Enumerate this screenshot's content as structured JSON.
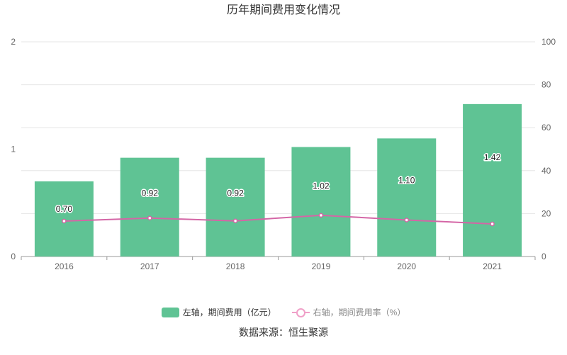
{
  "chart_data": {
    "type": "bar",
    "title": "历年期间费用变化情况",
    "categories": [
      "2016",
      "2017",
      "2018",
      "2019",
      "2020",
      "2021"
    ],
    "series": [
      {
        "name": "左轴，期间费用（亿元）",
        "type": "bar",
        "axis": "left",
        "color": "#5fc394",
        "values": [
          0.7,
          0.92,
          0.92,
          1.02,
          1.1,
          1.42
        ],
        "labels": [
          "0.70",
          "0.92",
          "0.92",
          "1.02",
          "1.10",
          "1.42"
        ]
      },
      {
        "name": "右轴，期间费用率（%）",
        "type": "line",
        "axis": "right",
        "color": "#d466a6",
        "values": [
          16.5,
          17.9,
          16.6,
          19.2,
          17.0,
          15.2
        ]
      }
    ],
    "y_left": {
      "min": 0,
      "max": 2,
      "ticks": [
        "0",
        "1",
        "2"
      ]
    },
    "y_right": {
      "min": 0,
      "max": 100,
      "ticks": [
        "0",
        "20",
        "40",
        "60",
        "80",
        "100"
      ]
    },
    "grid": true,
    "legend_position": "bottom"
  },
  "source": "数据来源：恒生聚源"
}
